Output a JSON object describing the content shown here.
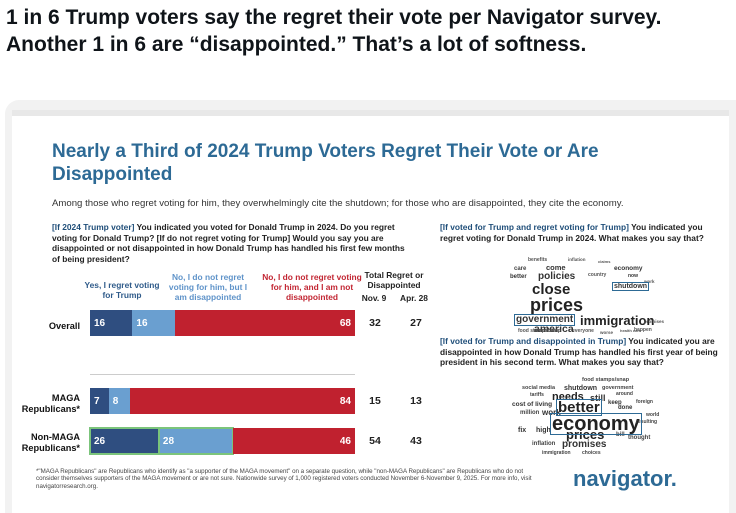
{
  "tweet": {
    "text": "1 in 6 Trump voters say the regret their vote per Navigator survey. Another 1 in 6 are “disappointed.” That’s a lot of softness."
  },
  "slide": {
    "title": "Nearly a Third of 2024 Trump Voters Regret Their Vote or Are Disappointed",
    "subtitle": "Among those who regret voting for him, they overwhelmingly cite the shutdown; for those who are disappointed, they cite the economy.",
    "left_question_tag": "[If 2024 Trump voter]",
    "left_question_text": " You indicated you voted for Donald Trump in 2024. Do you regret voting for Donald Trump? [If do not regret voting for Trump] Would you say you are disappointed or not disappointed in how Donald Trump has handled his first few months of being president?",
    "right_question1_tag": "[If voted for Trump and regret voting for Trump]",
    "right_question1_text": " You indicated you regret voting for Donald Trump in 2024. What makes you say that?",
    "right_question2_tag": "[If voted for Trump and disappointed in Trump]",
    "right_question2_text": " You indicated you are disappointed in how Donald Trump has handled his first year of being president in his second term. What makes you say that?",
    "footnote": "*\"MAGA Republicans\" are Republicans who identify as \"a supporter of the MAGA movement\" on a separate question, while \"non-MAGA Republicans\" are Republicans who do not consider themselves supporters of the MAGA movement or are not sure. Nationwide survey of 1,000 registered voters conducted November 6-November 9, 2025. For more info, visit navigatorresearch.org.",
    "logo": "navigator."
  },
  "chart_data": {
    "type": "bar",
    "stacked": true,
    "orientation": "horizontal",
    "categories": [
      "Overall",
      "MAGA Republicans*",
      "Non-MAGA Republicans*"
    ],
    "series": [
      {
        "name": "Yes, I regret voting for Trump",
        "values": [
          16,
          7,
          26
        ],
        "color": "#2f4e80"
      },
      {
        "name": "No, I do not regret voting for him, but I am disappointed",
        "values": [
          16,
          8,
          28
        ],
        "color": "#6a9fd0"
      },
      {
        "name": "No, I do not regret voting for him, and I am not disappointed",
        "values": [
          68,
          84,
          46
        ],
        "color": "#c0212f"
      }
    ],
    "total_header": "Total Regret or Disappointed",
    "total_columns": [
      {
        "label": "Nov. 9",
        "values": [
          32,
          15,
          54
        ]
      },
      {
        "label": "Apr. 28",
        "values": [
          27,
          13,
          43
        ]
      }
    ],
    "highlighted_category": "Non-MAGA Republicans*"
  },
  "cloud1": {
    "words": [
      "benefits",
      "inflation",
      "claims",
      "care",
      "come",
      "economy",
      "better",
      "policies",
      "country",
      "now",
      "work",
      "close",
      "shutdown",
      "prices",
      "government",
      "immigration",
      "promises",
      "americans",
      "everyone",
      "america",
      "food stamps/snap",
      "worse",
      "health care",
      "happen"
    ],
    "highlight": [
      "shutdown",
      "government"
    ]
  },
  "cloud2": {
    "words": [
      "food stamps/snap",
      "social media",
      "shutdown",
      "government",
      "tariffs",
      "needs",
      "still",
      "around",
      "keep",
      "foreign",
      "cost of living",
      "better",
      "done",
      "million",
      "work",
      "economy",
      "resulting",
      "world",
      "fix",
      "high",
      "prices",
      "bill",
      "thought",
      "inflation",
      "promises",
      "immigration",
      "choices"
    ],
    "highlight": [
      "economy",
      "better"
    ]
  }
}
